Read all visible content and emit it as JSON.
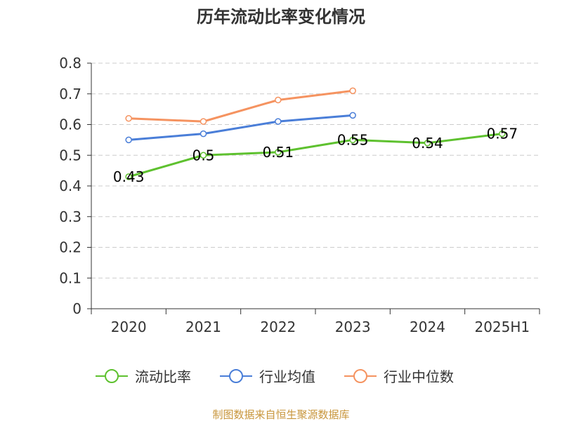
{
  "chart_data": {
    "type": "line",
    "title": "历年流动比率变化情况",
    "categories": [
      "2020",
      "2021",
      "2022",
      "2023",
      "2024",
      "2025H1"
    ],
    "series": [
      {
        "name": "流动比率",
        "color": "#5ec12f",
        "values": [
          0.43,
          0.5,
          0.51,
          0.55,
          0.54,
          0.57
        ],
        "labels": [
          "0.43",
          "0.5",
          "0.51",
          "0.55",
          "0.54",
          "0.57"
        ]
      },
      {
        "name": "行业均值",
        "color": "#4a7ed8",
        "values": [
          0.55,
          0.57,
          0.61,
          0.63,
          null,
          null
        ]
      },
      {
        "name": "行业中位数",
        "color": "#f59360",
        "values": [
          0.62,
          0.61,
          0.68,
          0.71,
          null,
          null
        ]
      }
    ],
    "ylim": [
      0,
      0.8
    ],
    "yticks": [
      "0",
      "0.1",
      "0.2",
      "0.3",
      "0.4",
      "0.5",
      "0.6",
      "0.7",
      "0.8"
    ],
    "grid": true,
    "legend_position": "bottom"
  },
  "source": "制图数据来自恒生聚源数据库"
}
